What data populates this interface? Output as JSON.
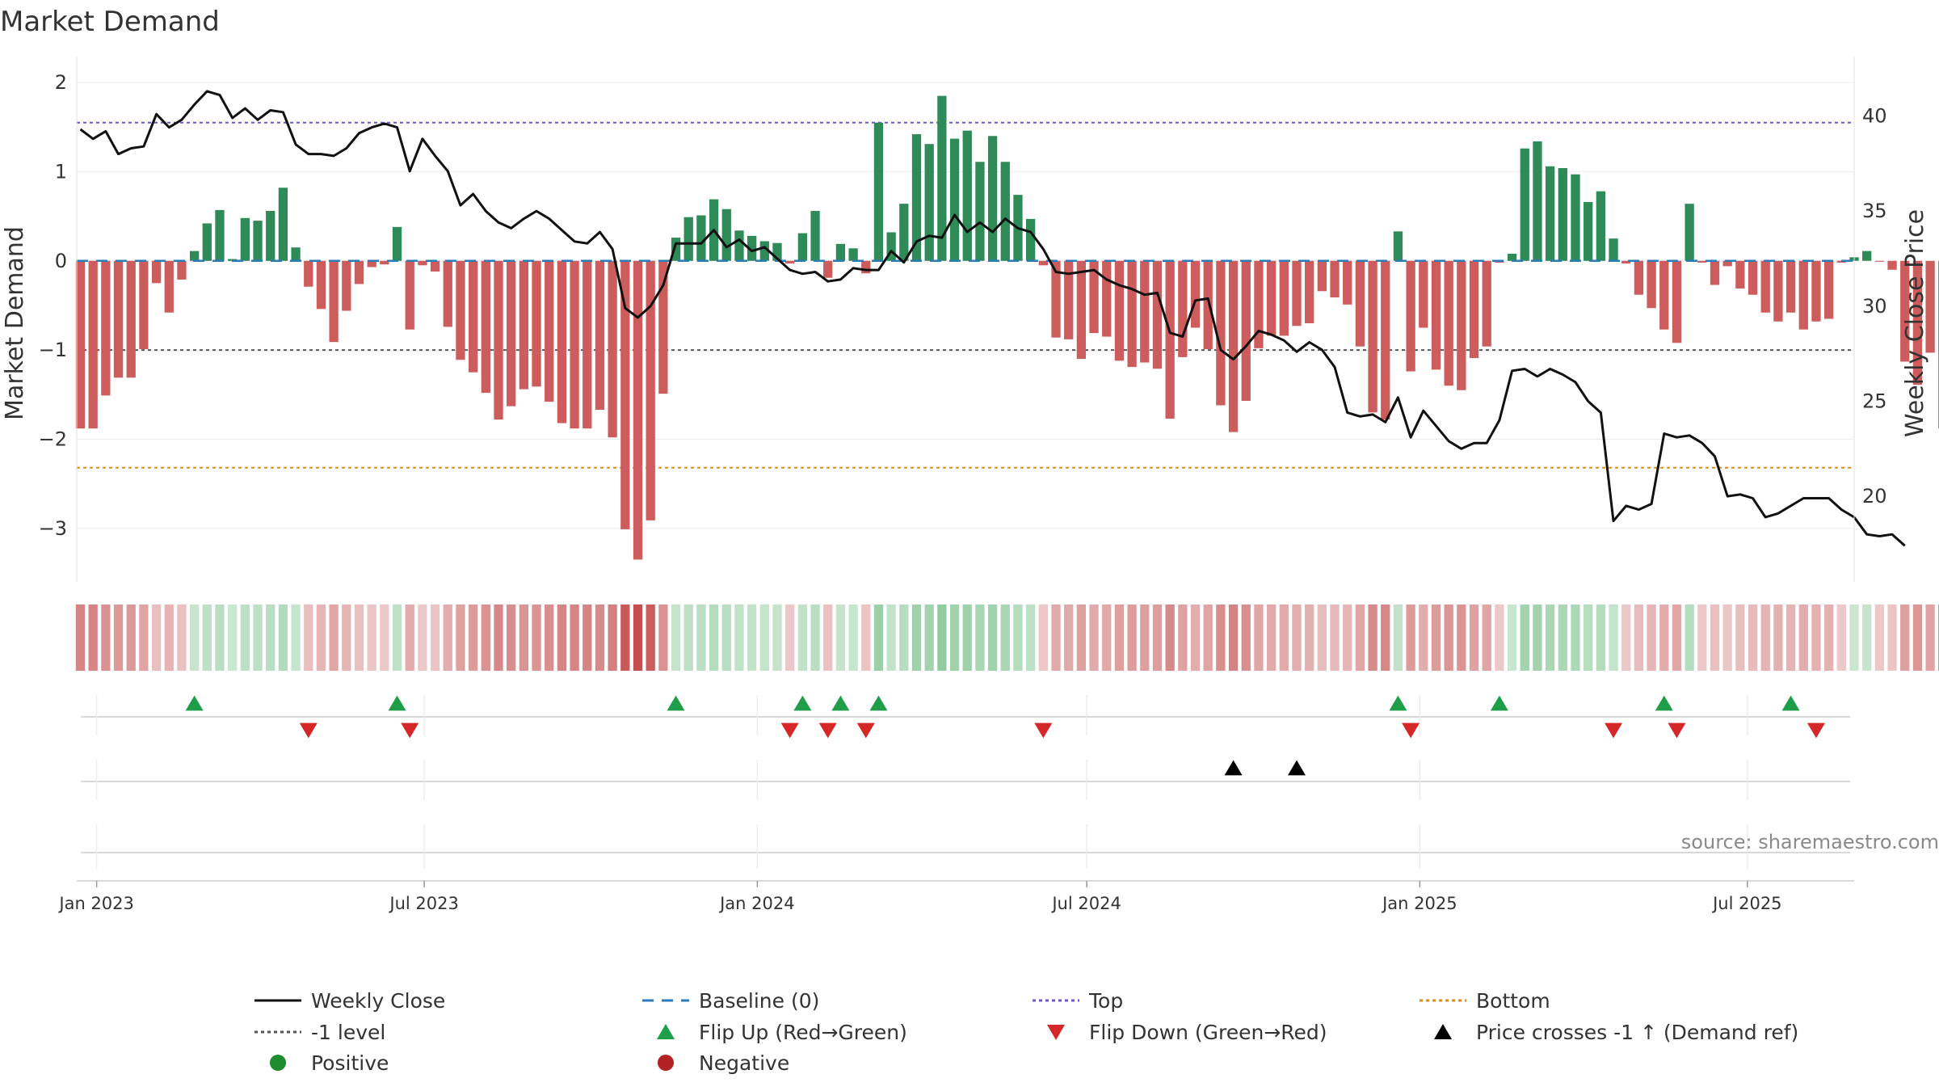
{
  "chart_data": {
    "type": "bar",
    "title": "Market Demand",
    "ylabel": "Market Demand",
    "y2label": "Weekly Close Price",
    "ylim": [
      -3.6,
      2.2
    ],
    "y_ticks": [
      2,
      1,
      0,
      -1,
      -2,
      -3
    ],
    "y_tick_labels": [
      "2",
      "1",
      "0",
      "−1",
      "−2",
      "−3"
    ],
    "y2lim": [
      15.5,
      42.7
    ],
    "y2_ticks": [
      40,
      35,
      30,
      25,
      20
    ],
    "y2_tick_labels": [
      "40",
      "35",
      "30",
      "25",
      "20"
    ],
    "x_range": [
      "2022-12-21",
      "2025-08-29"
    ],
    "x_ticks": [
      {
        "date": "2023-01-01",
        "label": "Jan 2023"
      },
      {
        "date": "2023-07-01",
        "label": "Jul 2023"
      },
      {
        "date": "2024-01-01",
        "label": "Jan 2024"
      },
      {
        "date": "2024-07-01",
        "label": "Jul 2024"
      },
      {
        "date": "2025-01-01",
        "label": "Jan 2025"
      },
      {
        "date": "2025-07-01",
        "label": "Jul 2025"
      }
    ],
    "start_week": "2022-12-23",
    "weeks_interval_days": 7,
    "reference_lines": {
      "top": 1.55,
      "minus_one": -1.0,
      "bottom": -2.32
    },
    "demand": [
      -1.88,
      -1.88,
      -1.51,
      -1.31,
      -1.31,
      -0.99,
      -0.25,
      -0.58,
      -0.21,
      0.11,
      0.42,
      0.57,
      0.02,
      0.48,
      0.45,
      0.56,
      0.82,
      0.15,
      -0.29,
      -0.54,
      -0.91,
      -0.56,
      -0.26,
      -0.07,
      -0.04,
      0.38,
      -0.77,
      -0.05,
      -0.12,
      -0.74,
      -1.11,
      -1.25,
      -1.48,
      -1.78,
      -1.63,
      -1.44,
      -1.41,
      -1.58,
      -1.82,
      -1.88,
      -1.88,
      -1.67,
      -1.98,
      -3.01,
      -3.35,
      -2.91,
      -1.49,
      0.26,
      0.49,
      0.51,
      0.69,
      0.58,
      0.34,
      0.28,
      0.22,
      0.2,
      -0.03,
      0.31,
      0.56,
      -0.19,
      0.19,
      0.14,
      -0.14,
      1.55,
      0.32,
      0.64,
      1.42,
      1.31,
      1.85,
      1.37,
      1.46,
      1.11,
      1.4,
      1.11,
      0.74,
      0.47,
      -0.05,
      -0.86,
      -0.88,
      -1.1,
      -0.81,
      -0.85,
      -1.12,
      -1.19,
      -1.14,
      -1.21,
      -1.77,
      -1.08,
      -0.75,
      -0.99,
      -1.62,
      -1.92,
      -1.57,
      -0.98,
      -0.84,
      -0.84,
      -0.73,
      -0.7,
      -0.34,
      -0.41,
      -0.49,
      -0.96,
      -1.7,
      -1.78,
      0.33,
      -1.24,
      -0.75,
      -1.22,
      -1.4,
      -1.45,
      -1.09,
      -0.96,
      -0.02,
      0.08,
      1.26,
      1.34,
      1.06,
      1.04,
      0.97,
      0.66,
      0.78,
      0.25,
      -0.03,
      -0.38,
      -0.53,
      -0.77,
      -0.92,
      0.64,
      -0.02,
      -0.27,
      -0.06,
      -0.31,
      -0.38,
      -0.58,
      -0.68,
      -0.58,
      -0.77,
      -0.68,
      -0.65,
      -0.02,
      0.04,
      0.11,
      -0.01,
      -0.1,
      -1.13,
      -1.39,
      -1.03,
      -1.88,
      -1.36,
      -1.75
    ],
    "close": [
      39.3,
      38.8,
      39.2,
      38.0,
      38.3,
      38.4,
      40.1,
      39.4,
      39.8,
      40.6,
      41.3,
      41.1,
      39.9,
      40.4,
      39.8,
      40.3,
      40.2,
      38.5,
      38.0,
      38.0,
      37.9,
      38.3,
      39.1,
      39.4,
      39.6,
      39.4,
      37.1,
      38.8,
      37.9,
      37.1,
      35.3,
      35.9,
      35.0,
      34.4,
      34.1,
      34.6,
      35.0,
      34.6,
      34.0,
      33.4,
      33.3,
      33.9,
      33.0,
      29.9,
      29.4,
      30.0,
      31.1,
      33.3,
      33.3,
      33.3,
      34.0,
      33.1,
      33.5,
      32.9,
      33.1,
      32.5,
      31.9,
      31.7,
      31.8,
      31.3,
      31.4,
      32.0,
      31.9,
      31.9,
      32.9,
      32.3,
      33.4,
      33.7,
      33.6,
      34.8,
      33.9,
      34.4,
      33.9,
      34.6,
      34.1,
      33.9,
      33.0,
      31.8,
      31.7,
      31.8,
      31.9,
      31.4,
      31.1,
      30.9,
      30.6,
      30.7,
      28.6,
      28.4,
      30.3,
      30.4,
      27.7,
      27.2,
      27.9,
      28.7,
      28.5,
      28.2,
      27.6,
      28.1,
      27.7,
      26.8,
      24.4,
      24.2,
      24.3,
      23.9,
      25.2,
      23.1,
      24.5,
      23.7,
      22.9,
      22.5,
      22.8,
      22.8,
      24.0,
      26.6,
      26.7,
      26.3,
      26.7,
      26.4,
      26.0,
      25.0,
      24.4,
      18.7,
      19.5,
      19.3,
      19.6,
      23.3,
      23.1,
      23.2,
      22.8,
      22.1,
      20.0,
      20.1,
      19.9,
      18.9,
      19.1,
      19.5,
      19.9,
      19.9,
      19.9,
      19.3,
      18.9,
      18.0,
      17.9,
      18.0,
      17.4
    ],
    "flip_up_weeks": [
      9,
      25,
      47,
      57,
      60,
      63,
      104,
      112,
      125,
      135
    ],
    "flip_down_weeks": [
      18,
      26,
      56,
      59,
      62,
      76,
      105,
      121,
      126,
      137
    ],
    "price_cross_weeks": [
      91,
      96
    ],
    "legend": [
      {
        "label": "Weekly Close",
        "symbol": "line-solid",
        "color": "#111111"
      },
      {
        "label": "Baseline (0)",
        "symbol": "line-dash",
        "color": "#2b7bba"
      },
      {
        "label": "Top",
        "symbol": "line-dot",
        "color": "#6a5acd"
      },
      {
        "label": "Bottom",
        "symbol": "line-dot",
        "color": "#e08a1e"
      },
      {
        "label": "-1 level",
        "symbol": "line-dot",
        "color": "#555555"
      },
      {
        "label": "Flip Up (Red→Green)",
        "symbol": "triangle-up",
        "color": "#1f9e4a"
      },
      {
        "label": "Flip Down (Green→Red)",
        "symbol": "triangle-down",
        "color": "#d62728"
      },
      {
        "label": "Price crosses -1 ↑ (Demand ref)",
        "symbol": "triangle-up",
        "color": "#000000"
      },
      {
        "label": "Positive",
        "symbol": "circle",
        "color": "#1e8c2e"
      },
      {
        "label": "Negative",
        "symbol": "circle",
        "color": "#b22222"
      }
    ],
    "colors": {
      "positive_bar": "#2e8b57",
      "negative_bar": "#cd5c5c",
      "close_line": "#111111",
      "baseline": "#2b7bba",
      "top_line": "#6a5acd",
      "bottom_line": "#e08a1e",
      "minus_one_line": "#555555"
    }
  },
  "source": "source: sharemaestro.com"
}
